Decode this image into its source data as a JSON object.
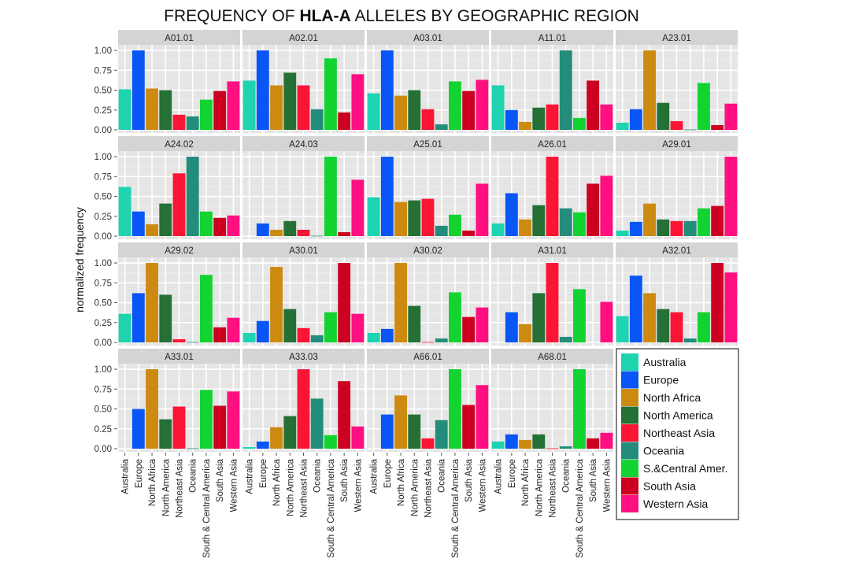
{
  "chart_data": {
    "type": "bar",
    "title_parts": [
      {
        "text": "FREQUENCY OF ",
        "bold": false
      },
      {
        "text": "HLA-A",
        "bold": true
      },
      {
        "text": " ALLELES BY GEOGRAPHIC REGION",
        "bold": false
      }
    ],
    "title": "FREQUENCY OF HLA-A ALLELES BY GEOGRAPHIC REGION",
    "xlabel": "",
    "ylabel": "normalized frequency",
    "ylim": [
      0,
      1.05
    ],
    "yticks": [
      0,
      0.25,
      0.5,
      0.75,
      1.0
    ],
    "ytick_labels": [
      "0.00",
      "0.25",
      "0.50",
      "0.75",
      "1.00"
    ],
    "grid": true,
    "facet_layout": {
      "rows": 4,
      "cols": 5
    },
    "categories": [
      "Australia",
      "Europe",
      "North Africa",
      "North America",
      "Northeast Asia",
      "Oceania",
      "South & Central America",
      "South Asia",
      "Western Asia"
    ],
    "legend": {
      "position": "bottom-right",
      "entries": [
        {
          "label": "Australia",
          "color": "#1dd3b0"
        },
        {
          "label": "Europe",
          "color": "#0a55f5"
        },
        {
          "label": "North Africa",
          "color": "#cc8a10"
        },
        {
          "label": "North America",
          "color": "#257035"
        },
        {
          "label": "Northeast Asia",
          "color": "#fa1535"
        },
        {
          "label": "Oceania",
          "color": "#238c7a"
        },
        {
          "label": "S.&Central Amer.",
          "color": "#12d330"
        },
        {
          "label": "South Asia",
          "color": "#cc0020"
        },
        {
          "label": "Western Asia",
          "color": "#ff0f80"
        }
      ]
    },
    "panels": [
      {
        "name": "A01.01",
        "values": [
          0.51,
          1.0,
          0.52,
          0.5,
          0.19,
          0.17,
          0.38,
          0.49,
          0.61
        ]
      },
      {
        "name": "A02.01",
        "values": [
          0.62,
          1.0,
          0.56,
          0.72,
          0.56,
          0.26,
          0.9,
          0.22,
          0.7
        ]
      },
      {
        "name": "A03.01",
        "values": [
          0.46,
          1.0,
          0.43,
          0.5,
          0.26,
          0.07,
          0.61,
          0.49,
          0.63
        ]
      },
      {
        "name": "A11.01",
        "values": [
          0.56,
          0.25,
          0.1,
          0.28,
          0.32,
          1.0,
          0.15,
          0.62,
          0.32
        ]
      },
      {
        "name": "A23.01",
        "values": [
          0.09,
          0.26,
          1.0,
          0.34,
          0.11,
          0.005,
          0.59,
          0.06,
          0.33
        ]
      },
      {
        "name": "A24.02",
        "values": [
          0.62,
          0.31,
          0.15,
          0.41,
          0.79,
          1.0,
          0.31,
          0.23,
          0.26
        ]
      },
      {
        "name": "A24.03",
        "values": [
          0.0,
          0.16,
          0.08,
          0.19,
          0.08,
          0.005,
          1.0,
          0.05,
          0.71
        ]
      },
      {
        "name": "A25.01",
        "values": [
          0.49,
          1.0,
          0.43,
          0.45,
          0.47,
          0.13,
          0.27,
          0.07,
          0.66
        ]
      },
      {
        "name": "A26.01",
        "values": [
          0.16,
          0.54,
          0.21,
          0.39,
          1.0,
          0.35,
          0.3,
          0.66,
          0.76
        ]
      },
      {
        "name": "A29.01",
        "values": [
          0.07,
          0.18,
          0.41,
          0.21,
          0.19,
          0.19,
          0.35,
          0.38,
          1.0
        ]
      },
      {
        "name": "A29.02",
        "values": [
          0.36,
          0.62,
          1.0,
          0.6,
          0.04,
          0.005,
          0.85,
          0.19,
          0.31
        ]
      },
      {
        "name": "A30.01",
        "values": [
          0.12,
          0.27,
          0.95,
          0.42,
          0.18,
          0.09,
          0.38,
          1.0,
          0.36
        ]
      },
      {
        "name": "A30.02",
        "values": [
          0.12,
          0.17,
          1.0,
          0.46,
          0.005,
          0.05,
          0.63,
          0.32,
          0.44
        ]
      },
      {
        "name": "A31.01",
        "values": [
          0.0,
          0.38,
          0.23,
          0.62,
          1.0,
          0.07,
          0.67,
          0.0,
          0.51
        ]
      },
      {
        "name": "A32.01",
        "values": [
          0.33,
          0.84,
          0.62,
          0.42,
          0.38,
          0.05,
          0.38,
          1.0,
          0.88
        ]
      },
      {
        "name": "A33.01",
        "values": [
          0.0,
          0.5,
          1.0,
          0.37,
          0.53,
          0.005,
          0.74,
          0.54,
          0.72
        ]
      },
      {
        "name": "A33.03",
        "values": [
          0.02,
          0.09,
          0.27,
          0.41,
          1.0,
          0.63,
          0.17,
          0.85,
          0.28
        ]
      },
      {
        "name": "A66.01",
        "values": [
          0.0,
          0.43,
          0.67,
          0.43,
          0.13,
          0.36,
          1.0,
          0.55,
          0.8
        ]
      },
      {
        "name": "A68.01",
        "values": [
          0.09,
          0.18,
          0.11,
          0.18,
          0.005,
          0.03,
          1.0,
          0.13,
          0.2
        ]
      }
    ]
  }
}
